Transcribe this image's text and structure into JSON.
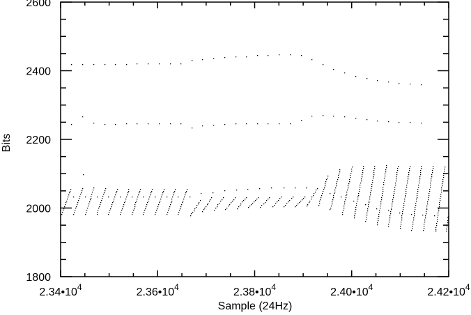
{
  "chart_data": {
    "type": "scatter",
    "title": "",
    "xlabel": "Sample (24Hz)",
    "ylabel": "Bits",
    "xlim": [
      23400,
      24200
    ],
    "ylim": [
      1800,
      2600
    ],
    "grid": false,
    "legend": "none",
    "x_ticks": [
      23400,
      23600,
      23800,
      24000,
      24200
    ],
    "x_tick_labels": [
      {
        "base": "2.34•10",
        "exp": "4"
      },
      {
        "base": "2.36•10",
        "exp": "4"
      },
      {
        "base": "2.38•10",
        "exp": "4"
      },
      {
        "base": "2.40•10",
        "exp": "4"
      },
      {
        "base": "2.42•10",
        "exp": "4"
      }
    ],
    "x_minor_step": 50,
    "y_ticks": [
      1800,
      2000,
      2200,
      2400,
      2600
    ],
    "y_tick_labels": [
      "1800",
      "2000",
      "2200",
      "2400",
      "2600"
    ],
    "y_minor_step": 50,
    "marker_color": "#000000",
    "series": [
      {
        "x": [
          23422,
          23445,
          23467,
          23490,
          23512,
          23535,
          23557,
          23580,
          23602,
          23625,
          23647,
          23670,
          23692,
          23715,
          23737,
          23760,
          23782,
          23805,
          23827,
          23850,
          23872,
          23895,
          23917,
          23940,
          23962,
          23985,
          24007,
          24030,
          24052,
          24075,
          24097,
          24120,
          24142
        ],
        "y": [
          2420,
          2420,
          2419,
          2420,
          2420,
          2420,
          2422,
          2422,
          2422,
          2422,
          2422,
          2431,
          2433,
          2437,
          2440,
          2442,
          2442,
          2445,
          2445,
          2447,
          2447,
          2445,
          2433,
          2419,
          2406,
          2394,
          2384,
          2378,
          2372,
          2368,
          2364,
          2362,
          2360
        ]
      },
      {
        "x": [
          23422,
          23445,
          23467,
          23490,
          23512,
          23535,
          23557,
          23580,
          23602,
          23625,
          23647,
          23670,
          23692,
          23715,
          23737,
          23760,
          23782,
          23805,
          23827,
          23850,
          23872,
          23895,
          23917,
          23940,
          23962,
          23985,
          24007,
          24030,
          24052,
          24075,
          24097,
          24120,
          24142
        ],
        "y": [
          2244,
          2266,
          2248,
          2244,
          2244,
          2246,
          2246,
          2246,
          2246,
          2246,
          2246,
          2234,
          2240,
          2242,
          2244,
          2246,
          2246,
          2246,
          2246,
          2246,
          2246,
          2256,
          2270,
          2272,
          2270,
          2266,
          2262,
          2258,
          2254,
          2252,
          2250,
          2250,
          2248
        ]
      },
      {
        "x": [
          23426,
          23446,
          23450,
          23474,
          23498,
          23522,
          23546,
          23570,
          23594,
          23618,
          23642,
          23666,
          23689,
          23713,
          23737,
          23762,
          23785,
          23809,
          23834,
          23859,
          23882,
          23906,
          23955,
          23978,
          24003,
          24027,
          24051,
          24075,
          24098,
          24123,
          24146,
          24170,
          24197
        ],
        "y": [
          2034,
          2098,
          2034,
          2034,
          2034,
          2034,
          2034,
          2034,
          2034,
          2034,
          2034,
          2034,
          2044,
          2046,
          2052,
          2054,
          2056,
          2058,
          2059,
          2059,
          2059,
          2059,
          2044,
          2034,
          2021,
          2011,
          2000,
          1994,
          1987,
          1982,
          1980,
          1978,
          1975
        ]
      }
    ],
    "ramps": [
      [
        23402,
        1983,
        23420,
        2056
      ],
      [
        23426,
        1983,
        23444,
        2058
      ],
      [
        23450,
        1983,
        23468,
        2060
      ],
      [
        23474,
        1983,
        23492,
        2058
      ],
      [
        23498,
        1983,
        23516,
        2056
      ],
      [
        23522,
        1983,
        23540,
        2056
      ],
      [
        23546,
        1983,
        23564,
        2056
      ],
      [
        23570,
        1983,
        23588,
        2056
      ],
      [
        23594,
        1983,
        23612,
        2056
      ],
      [
        23618,
        1983,
        23636,
        2056
      ],
      [
        23642,
        1983,
        23660,
        2056
      ],
      [
        23667,
        1979,
        23687,
        2023
      ],
      [
        23692,
        1991,
        23710,
        2031
      ],
      [
        23716,
        1995,
        23734,
        2031
      ],
      [
        23739,
        1997,
        23759,
        2031
      ],
      [
        23763,
        2000,
        23782,
        2032
      ],
      [
        23787,
        2004,
        23807,
        2032
      ],
      [
        23811,
        2004,
        23830,
        2032
      ],
      [
        23836,
        2005,
        23854,
        2034
      ],
      [
        23859,
        2005,
        23878,
        2034
      ],
      [
        23883,
        2005,
        23903,
        2034
      ],
      [
        23907,
        2007,
        23928,
        2058
      ],
      [
        23931,
        2009,
        23950,
        2095
      ],
      [
        23955,
        1996,
        23975,
        2113
      ],
      [
        23980,
        1983,
        24000,
        2120
      ],
      [
        24004,
        1973,
        24024,
        2122
      ],
      [
        24028,
        1963,
        24047,
        2123
      ],
      [
        24052,
        1953,
        24071,
        2124
      ],
      [
        24075,
        1948,
        24095,
        2122
      ],
      [
        24099,
        1943,
        24119,
        2122
      ],
      [
        24123,
        1937,
        24143,
        2122
      ],
      [
        24147,
        1936,
        24167,
        2122
      ],
      [
        24172,
        1933,
        24191,
        2120
      ],
      [
        24194,
        1933,
        24199,
        1977
      ]
    ]
  }
}
